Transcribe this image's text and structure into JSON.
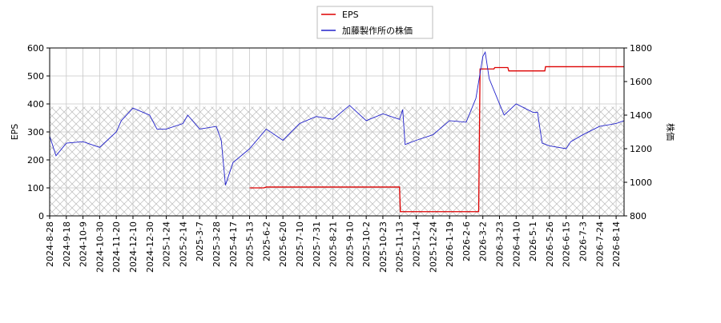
{
  "chart_data": {
    "type": "line",
    "xlim": [
      "2024-8-28",
      "2026-8-24"
    ],
    "xticks": [
      "2024-8-28",
      "2024-9-18",
      "2024-10-9",
      "2024-10-30",
      "2024-11-20",
      "2024-12-10",
      "2024-12-30",
      "2025-1-24",
      "2025-2-14",
      "2025-3-7",
      "2025-3-28",
      "2025-4-17",
      "2025-5-13",
      "2025-6-2",
      "2025-6-20",
      "2025-7-10",
      "2025-7-31",
      "2025-8-21",
      "2025-9-10",
      "2025-10-2",
      "2025-10-23",
      "2025-11-13",
      "2025-12-4",
      "2025-12-24",
      "2026-1-19",
      "2026-2-6",
      "2026-3-2",
      "2026-3-23",
      "2026-4-10",
      "2026-5-1",
      "2026-5-26",
      "2026-6-15",
      "2026-7-3",
      "2026-7-24",
      "2026-8-14"
    ],
    "ylabel": "EPS",
    "y2label": "株価",
    "ylim": [
      0,
      600
    ],
    "yticks": [
      0,
      100,
      200,
      300,
      400,
      500,
      600
    ],
    "y2lim": [
      800,
      1800
    ],
    "y2ticks": [
      800,
      1000,
      1200,
      1400,
      1600,
      1800
    ],
    "grid": true,
    "legend": "top",
    "shaded_range": [
      0,
      390
    ],
    "series": [
      {
        "name": "EPS",
        "color": "#dd0000",
        "x": [
          "2025-5-13",
          "2025-5-30",
          "2025-6-2",
          "2025-11-13",
          "2025-11-14",
          "2026-2-24",
          "2026-2-26",
          "2026-3-16",
          "2026-3-17",
          "2026-4-1",
          "2026-4-2",
          "2026-5-19",
          "2026-5-20",
          "2026-8-24"
        ],
        "values": [
          100,
          100,
          103,
          103,
          15,
          15,
          525,
          525,
          530,
          530,
          518,
          518,
          533,
          533
        ]
      },
      {
        "name": "加藤製作所の株価",
        "color": "#2222cc",
        "axis": "y2",
        "x": [
          "2024-8-28",
          "2024-9-5",
          "2024-9-18",
          "2024-10-9",
          "2024-10-30",
          "2024-11-20",
          "2024-11-26",
          "2024-12-10",
          "2024-12-30",
          "2025-1-10",
          "2025-1-24",
          "2025-2-14",
          "2025-2-20",
          "2025-3-7",
          "2025-3-28",
          "2025-4-3",
          "2025-4-8",
          "2025-4-17",
          "2025-5-13",
          "2025-6-2",
          "2025-6-20",
          "2025-7-10",
          "2025-7-31",
          "2025-8-21",
          "2025-9-10",
          "2025-10-2",
          "2025-10-23",
          "2025-11-13",
          "2025-11-17",
          "2025-11-20",
          "2025-12-4",
          "2025-12-24",
          "2026-1-19",
          "2026-2-6",
          "2026-2-20",
          "2026-3-2",
          "2026-3-5",
          "2026-3-10",
          "2026-3-23",
          "2026-3-28",
          "2026-4-10",
          "2026-5-1",
          "2026-5-8",
          "2026-5-15",
          "2026-5-26",
          "2026-6-15",
          "2026-6-20",
          "2026-7-3",
          "2026-7-24",
          "2026-8-14",
          "2026-8-24"
        ],
        "values": [
          1275,
          1158,
          1233,
          1242,
          1208,
          1300,
          1367,
          1442,
          1400,
          1317,
          1317,
          1350,
          1400,
          1317,
          1333,
          1250,
          983,
          1117,
          1200,
          1317,
          1250,
          1350,
          1392,
          1375,
          1458,
          1367,
          1408,
          1375,
          1433,
          1225,
          1250,
          1283,
          1367,
          1358,
          1500,
          1750,
          1775,
          1617,
          1467,
          1400,
          1467,
          1417,
          1417,
          1233,
          1217,
          1200,
          1242,
          1283,
          1333,
          1350,
          1367
        ]
      }
    ]
  }
}
